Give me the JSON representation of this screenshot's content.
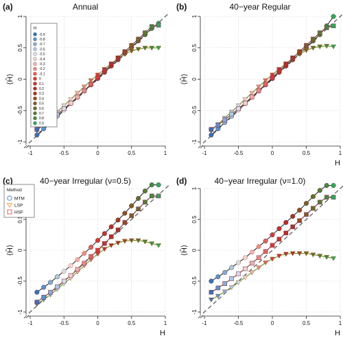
{
  "figure": {
    "colors": {
      "MTM_line": "#2b2b2b",
      "LSP_line": "#6b8e23",
      "HSF_line": "#7a3b2a",
      "diagonal": "#666666",
      "grid": "#cccccc"
    }
  },
  "legend_H": {
    "title": "H",
    "entries": [
      "-0.9",
      "-0.8",
      "-0.7",
      "-0.6",
      "-0.5",
      "-0.4",
      "-0.3",
      "-0.2",
      "-0.1",
      "0",
      "0.1",
      "0.2",
      "0.3",
      "0.4",
      "0.5",
      "0.6",
      "0.7",
      "0.8",
      "0.9"
    ],
    "colors": [
      "#3b6fb6",
      "#5d90ca",
      "#86acd8",
      "#b0c8e4",
      "#d4dde8",
      "#f2d2cf",
      "#f0b0aa",
      "#ea8b84",
      "#e2635d",
      "#d93a34",
      "#c9302a",
      "#b72d25",
      "#a73521",
      "#97491f",
      "#855a25",
      "#6e6a2a",
      "#5a7a32",
      "#47883c",
      "#35a55a"
    ]
  },
  "legend_method": {
    "title": "Method",
    "entries": [
      "MTM",
      "LSP",
      "HSF"
    ],
    "colors": [
      "#3a7fd5",
      "#f2a12e",
      "#e14f4f"
    ]
  },
  "chart_data": [
    {
      "type": "scatter",
      "letter": "(a)",
      "title": "Annual",
      "xlabel": "",
      "ylabel": "⟨Ĥ⟩",
      "xlim": [
        -1,
        1
      ],
      "ylim": [
        -1,
        1
      ],
      "x_ticks": [
        "-1",
        "-0.5",
        "0",
        "0.5",
        "1"
      ],
      "y_ticks": [
        "-1",
        "-0.5",
        "0",
        "0.5",
        "1"
      ],
      "grid": true,
      "legend": "top-left",
      "x": [
        -0.9,
        -0.8,
        -0.7,
        -0.6,
        -0.5,
        -0.4,
        -0.3,
        -0.2,
        -0.1,
        0,
        0.1,
        0.2,
        0.3,
        0.4,
        0.5,
        0.6,
        0.7,
        0.8,
        0.9
      ],
      "series": [
        {
          "name": "MTM",
          "marker": "circle",
          "values": [
            -0.89,
            -0.79,
            -0.69,
            -0.59,
            -0.49,
            -0.39,
            -0.29,
            -0.19,
            -0.09,
            0.01,
            0.11,
            0.21,
            0.31,
            0.41,
            0.51,
            0.61,
            0.71,
            0.81,
            0.89
          ]
        },
        {
          "name": "LSP",
          "marker": "triangle",
          "values": [
            -0.82,
            -0.72,
            -0.62,
            -0.52,
            -0.42,
            -0.32,
            -0.22,
            -0.12,
            -0.02,
            0.07,
            0.16,
            0.25,
            0.33,
            0.4,
            0.45,
            0.48,
            0.5,
            0.5,
            0.5
          ]
        },
        {
          "name": "HSF",
          "marker": "square",
          "values": [
            -0.8,
            -0.73,
            -0.65,
            -0.56,
            -0.47,
            -0.38,
            -0.28,
            -0.18,
            -0.08,
            0.03,
            0.13,
            0.23,
            0.34,
            0.44,
            0.54,
            0.64,
            0.74,
            0.84,
            0.86
          ]
        }
      ]
    },
    {
      "type": "scatter",
      "letter": "(b)",
      "title": "40−year Regular",
      "xlabel": "H",
      "ylabel": "⟨Ĥ⟩",
      "xlim": [
        -1,
        1
      ],
      "ylim": [
        -1,
        1
      ],
      "x_ticks": [
        "-1",
        "-0.5",
        "0",
        "0.5",
        "1"
      ],
      "y_ticks": [
        "-1",
        "-0.5",
        "0",
        "0.5",
        "1"
      ],
      "grid": true,
      "x": [
        -0.9,
        -0.8,
        -0.7,
        -0.6,
        -0.5,
        -0.4,
        -0.3,
        -0.2,
        -0.1,
        0,
        0.1,
        0.2,
        0.3,
        0.4,
        0.5,
        0.6,
        0.7,
        0.8,
        0.9
      ],
      "series": [
        {
          "name": "MTM",
          "marker": "circle",
          "values": [
            -0.89,
            -0.79,
            -0.69,
            -0.59,
            -0.49,
            -0.39,
            -0.29,
            -0.19,
            -0.09,
            0.01,
            0.11,
            0.21,
            0.31,
            0.41,
            0.51,
            0.61,
            0.71,
            0.85,
            1.0
          ]
        },
        {
          "name": "LSP",
          "marker": "triangle",
          "values": [
            -0.82,
            -0.72,
            -0.62,
            -0.52,
            -0.42,
            -0.32,
            -0.22,
            -0.12,
            -0.02,
            0.07,
            0.16,
            0.25,
            0.33,
            0.4,
            0.46,
            0.5,
            0.52,
            0.53,
            0.52
          ]
        },
        {
          "name": "HSF",
          "marker": "square",
          "values": [
            -0.8,
            -0.73,
            -0.65,
            -0.56,
            -0.47,
            -0.38,
            -0.28,
            -0.18,
            -0.08,
            0.03,
            0.13,
            0.23,
            0.34,
            0.44,
            0.54,
            0.64,
            0.74,
            0.82,
            0.85
          ]
        }
      ]
    },
    {
      "type": "scatter",
      "letter": "(c)",
      "title": "40−year Irregular (ν=0.5)",
      "xlabel": "H",
      "ylabel": "⟨Ĥ⟩",
      "xlim": [
        -1,
        1
      ],
      "ylim": [
        -1,
        1
      ],
      "x_ticks": [
        "-1",
        "-0.5",
        "0",
        "0.5",
        "1"
      ],
      "y_ticks": [
        "-1",
        "-0.5",
        "0",
        "0.5",
        "1"
      ],
      "grid": true,
      "legend": "top-left",
      "x": [
        -0.9,
        -0.8,
        -0.7,
        -0.6,
        -0.5,
        -0.4,
        -0.3,
        -0.2,
        -0.1,
        0,
        0.1,
        0.2,
        0.3,
        0.4,
        0.5,
        0.6,
        0.7,
        0.8,
        0.9
      ],
      "series": [
        {
          "name": "MTM",
          "marker": "circle",
          "values": [
            -0.68,
            -0.6,
            -0.52,
            -0.43,
            -0.34,
            -0.25,
            -0.15,
            -0.05,
            0.05,
            0.16,
            0.27,
            0.38,
            0.49,
            0.6,
            0.72,
            0.84,
            0.96,
            1.06,
            1.06
          ]
        },
        {
          "name": "LSP",
          "marker": "triangle",
          "values": [
            -0.87,
            -0.8,
            -0.72,
            -0.63,
            -0.54,
            -0.45,
            -0.35,
            -0.25,
            -0.15,
            -0.06,
            0.02,
            0.08,
            0.12,
            0.15,
            0.16,
            0.16,
            0.14,
            0.11,
            0.08
          ]
        },
        {
          "name": "HSF",
          "marker": "square",
          "values": [
            -0.84,
            -0.76,
            -0.68,
            -0.59,
            -0.5,
            -0.41,
            -0.31,
            -0.21,
            -0.1,
            0.0,
            0.11,
            0.22,
            0.33,
            0.45,
            0.56,
            0.67,
            0.78,
            0.88,
            0.88
          ]
        }
      ]
    },
    {
      "type": "scatter",
      "letter": "(d)",
      "title": "40−year Irregular (ν=1.0)",
      "xlabel": "H",
      "ylabel": "⟨Ĥ⟩",
      "xlim": [
        -1,
        1
      ],
      "ylim": [
        -1,
        1
      ],
      "x_ticks": [
        "-1",
        "-0.5",
        "0",
        "0.5",
        "1"
      ],
      "y_ticks": [
        "-1",
        "-0.5",
        "0",
        "0.5",
        "1"
      ],
      "grid": true,
      "x": [
        -0.9,
        -0.8,
        -0.7,
        -0.6,
        -0.5,
        -0.4,
        -0.3,
        -0.2,
        -0.1,
        0,
        0.1,
        0.2,
        0.3,
        0.4,
        0.5,
        0.6,
        0.7,
        0.8,
        0.9
      ],
      "series": [
        {
          "name": "MTM",
          "marker": "circle",
          "values": [
            -0.5,
            -0.43,
            -0.36,
            -0.28,
            -0.2,
            -0.12,
            -0.03,
            0.06,
            0.15,
            0.25,
            0.35,
            0.45,
            0.55,
            0.65,
            0.76,
            0.87,
            0.97,
            1.05,
            1.05
          ]
        },
        {
          "name": "LSP",
          "marker": "triangle",
          "values": [
            -0.8,
            -0.74,
            -0.67,
            -0.6,
            -0.52,
            -0.44,
            -0.36,
            -0.28,
            -0.2,
            -0.14,
            -0.09,
            -0.06,
            -0.05,
            -0.05,
            -0.05,
            -0.07,
            -0.09,
            -0.11,
            -0.13
          ]
        },
        {
          "name": "HSF",
          "marker": "square",
          "values": [
            -0.68,
            -0.61,
            -0.54,
            -0.46,
            -0.38,
            -0.3,
            -0.21,
            -0.12,
            -0.02,
            0.08,
            0.18,
            0.28,
            0.38,
            0.48,
            0.58,
            0.68,
            0.78,
            0.86,
            0.86
          ]
        }
      ]
    }
  ]
}
